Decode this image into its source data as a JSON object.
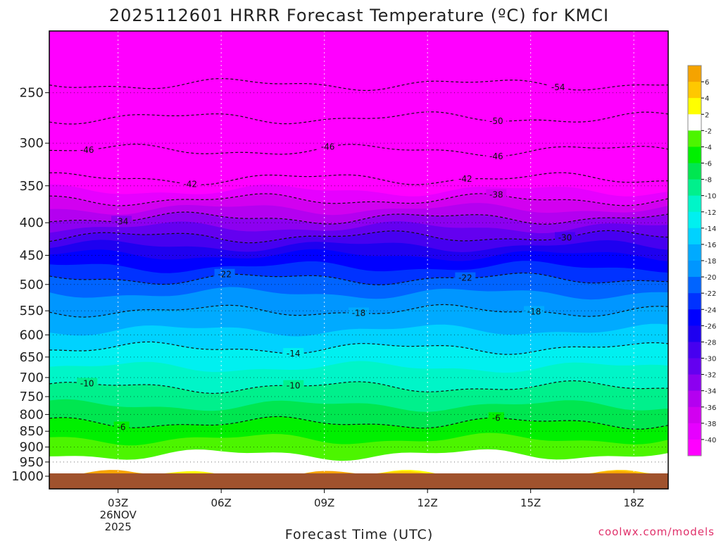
{
  "header": {
    "title": "2025112601 HRRR Forecast Temperature (ºC) for KMCI"
  },
  "footer": {
    "credit": "coolwx.com/models"
  },
  "chart_data": {
    "type": "heatmap",
    "title": "2025112601 HRRR Forecast Temperature (ºC) for KMCI",
    "xlabel": "Forecast Time (UTC)",
    "ylabel": "",
    "y_scale": "log-pressure (hPa, inverted)",
    "ylim_hPa": [
      1000,
      200
    ],
    "xlim_hours_utc": [
      1,
      19
    ],
    "y_ticks": [
      "250",
      "300",
      "350",
      "400",
      "450",
      "500",
      "550",
      "600",
      "650",
      "700",
      "750",
      "800",
      "850",
      "900",
      "950",
      "1000"
    ],
    "x_ticks": [
      {
        "label": "03Z",
        "hour": 3,
        "sub1": "26NOV",
        "sub2": "2025"
      },
      {
        "label": "06Z",
        "hour": 6,
        "sub1": "",
        "sub2": ""
      },
      {
        "label": "09Z",
        "hour": 9,
        "sub1": "",
        "sub2": ""
      },
      {
        "label": "12Z",
        "hour": 12,
        "sub1": "",
        "sub2": ""
      },
      {
        "label": "15Z",
        "hour": 15,
        "sub1": "",
        "sub2": ""
      },
      {
        "label": "18Z",
        "hour": 18,
        "sub1": "",
        "sub2": ""
      }
    ],
    "grid": true,
    "colorbar": {
      "placement": "right",
      "labels": [
        "6",
        "4",
        "2",
        "-2",
        "-4",
        "-6",
        "-8",
        "-10",
        "-12",
        "-14",
        "-16",
        "-18",
        "-20",
        "-22",
        "-24",
        "-26",
        "-28",
        "-30",
        "-32",
        "-34",
        "-36",
        "-38",
        "-40"
      ],
      "colors": [
        "#f5a300",
        "#ffc800",
        "#ffff00",
        "#ffffff",
        "#4cf500",
        "#00f000",
        "#00e650",
        "#00f08c",
        "#00f5c8",
        "#00f0f0",
        "#00d2ff",
        "#00aaff",
        "#0096ff",
        "#0064ff",
        "#0032ff",
        "#0000ff",
        "#1e00f0",
        "#4600f0",
        "#6400f0",
        "#8c00f0",
        "#b400f0",
        "#d200f0",
        "#e600ff",
        "#ff00ff"
      ]
    },
    "ground_color": "#a0522d",
    "background_color": "#ff00ff",
    "temperature_profile": [
      {
        "pressure": 1000,
        "temp": 1.5
      },
      {
        "pressure": 950,
        "temp": -1
      },
      {
        "pressure": 900,
        "temp": -3
      },
      {
        "pressure": 850,
        "temp": -5
      },
      {
        "pressure": 800,
        "temp": -7
      },
      {
        "pressure": 750,
        "temp": -9
      },
      {
        "pressure": 700,
        "temp": -11
      },
      {
        "pressure": 650,
        "temp": -13
      },
      {
        "pressure": 600,
        "temp": -15.5
      },
      {
        "pressure": 550,
        "temp": -18
      },
      {
        "pressure": 500,
        "temp": -21
      },
      {
        "pressure": 450,
        "temp": -26
      },
      {
        "pressure": 400,
        "temp": -33
      },
      {
        "pressure": 350,
        "temp": -41
      },
      {
        "pressure": 300,
        "temp": -47
      },
      {
        "pressure": 250,
        "temp": -53
      }
    ],
    "contours": [
      {
        "label": "-54",
        "temp": -54,
        "label_hour": 15.8
      },
      {
        "label": "-50",
        "temp": -50,
        "label_hour": 14
      },
      {
        "label": "-46",
        "temp": -46,
        "label_hour": 2.1
      },
      {
        "label": "-46",
        "temp": -46,
        "label_hour": 9.1
      },
      {
        "label": "-46",
        "temp": -46,
        "label_hour": 14
      },
      {
        "label": "-42",
        "temp": -42,
        "label_hour": 5.1
      },
      {
        "label": "-42",
        "temp": -42,
        "label_hour": 13.1
      },
      {
        "label": "-38",
        "temp": -38,
        "label_hour": 14
      },
      {
        "label": "-34",
        "temp": -34,
        "label_hour": 3.1
      },
      {
        "label": "-30",
        "temp": -30,
        "label_hour": 16
      },
      {
        "label": "-22",
        "temp": -22,
        "label_hour": 6.1
      },
      {
        "label": "-22",
        "temp": -22,
        "label_hour": 13.1
      },
      {
        "label": "-18",
        "temp": -18,
        "label_hour": 10
      },
      {
        "label": "-18",
        "temp": -18,
        "label_hour": 15.1
      },
      {
        "label": "-14",
        "temp": -14,
        "label_hour": 8.1
      },
      {
        "label": "-10",
        "temp": -10,
        "label_hour": 2.1
      },
      {
        "label": "-10",
        "temp": -10,
        "label_hour": 8.1
      },
      {
        "label": "-6",
        "temp": -6,
        "label_hour": 3.1
      },
      {
        "label": "-6",
        "temp": -6,
        "label_hour": 14
      }
    ]
  }
}
